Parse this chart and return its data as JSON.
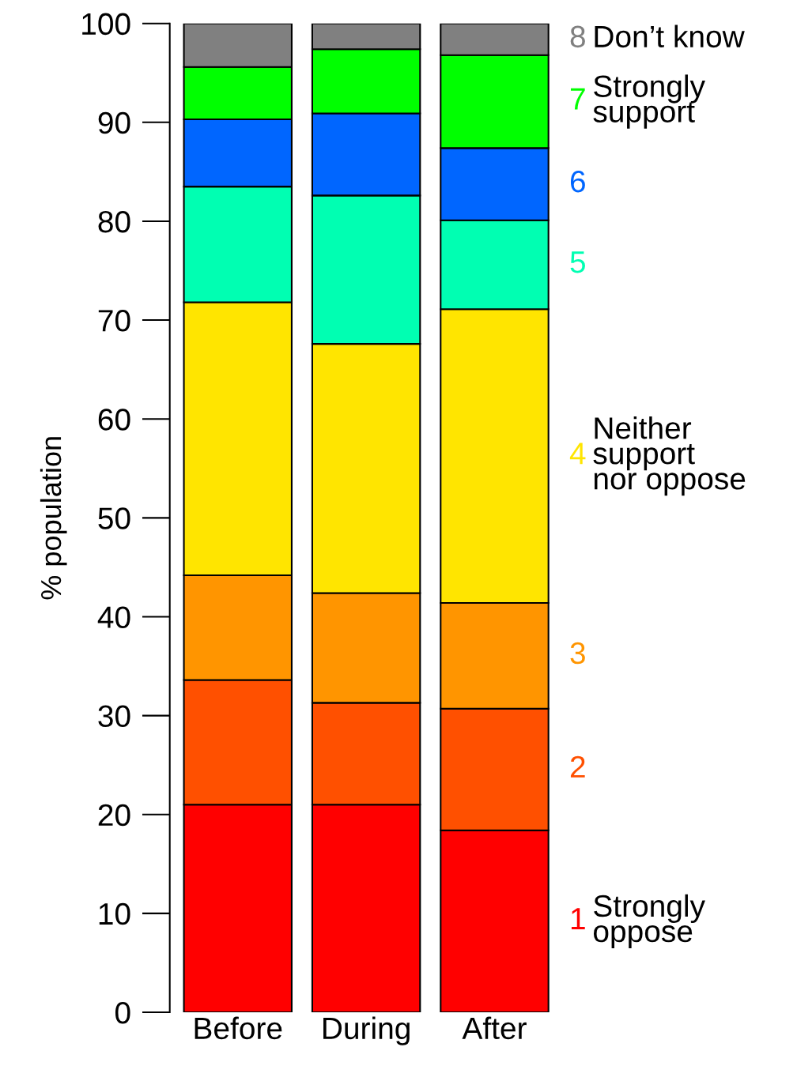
{
  "chart_data": {
    "type": "bar",
    "stacked": true,
    "ylabel": "% population",
    "categories": [
      "Before",
      "During",
      "After"
    ],
    "series": [
      {
        "name": "1 Strongly\noppose",
        "color": "#ff0000",
        "values": [
          21.0,
          21.0,
          18.4
        ]
      },
      {
        "name": "2",
        "color": "#ff5000",
        "values": [
          12.6,
          10.3,
          12.3
        ]
      },
      {
        "name": "3",
        "color": "#ff9500",
        "values": [
          10.6,
          11.1,
          10.7
        ]
      },
      {
        "name": "4 Neither\nsupport\nnor oppose",
        "color": "#ffe500",
        "values": [
          27.6,
          25.2,
          29.7
        ]
      },
      {
        "name": "5",
        "color": "#00ffb2",
        "values": [
          11.7,
          15.0,
          9.0
        ]
      },
      {
        "name": "6",
        "color": "#0066ff",
        "values": [
          6.8,
          8.3,
          7.3
        ]
      },
      {
        "name": "7 Strongly\nsupport",
        "color": "#00ff00",
        "values": [
          5.3,
          6.5,
          9.4
        ]
      },
      {
        "name": "8 Don’t know",
        "color": "#808080",
        "values": [
          4.4,
          2.6,
          3.2
        ]
      }
    ],
    "ylim": [
      0,
      100
    ],
    "yticks": [
      0,
      10,
      20,
      30,
      40,
      50,
      60,
      70,
      80,
      90,
      100
    ]
  }
}
